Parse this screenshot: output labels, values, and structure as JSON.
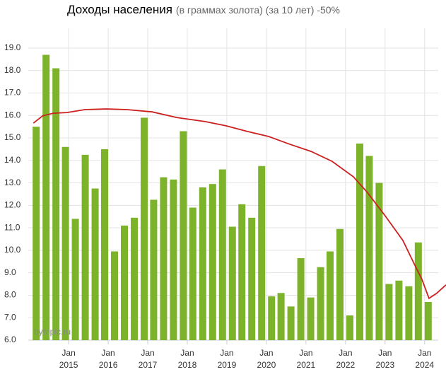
{
  "chart_data": {
    "type": "bar",
    "title": "Доходы населения",
    "subtitle": "(в граммах золота) (за 10 лет) -50%",
    "watermark": "bytopic.ru",
    "xlim": [
      2013.98,
      2024.54
    ],
    "ylim": [
      6,
      19.88
    ],
    "yticks": [
      {
        "value": 6,
        "label": "6.0"
      },
      {
        "value": 7,
        "label": "7.0"
      },
      {
        "value": 8,
        "label": "8.0"
      },
      {
        "value": 9,
        "label": "9.0"
      },
      {
        "value": 10,
        "label": "10.0"
      },
      {
        "value": 11,
        "label": "11.0"
      },
      {
        "value": 12,
        "label": "12.0"
      },
      {
        "value": 13,
        "label": "13.0"
      },
      {
        "value": 14,
        "label": "14.0"
      },
      {
        "value": 15,
        "label": "15.0"
      },
      {
        "value": 16,
        "label": "16.0"
      },
      {
        "value": 17,
        "label": "17.0"
      },
      {
        "value": 18,
        "label": "18.0"
      },
      {
        "value": 19,
        "label": "19.0"
      }
    ],
    "xticks": [
      {
        "value": 2015,
        "label": "Jan\n2015"
      },
      {
        "value": 2016,
        "label": "Jan\n2016"
      },
      {
        "value": 2017,
        "label": "Jan\n2017"
      },
      {
        "value": 2018,
        "label": "Jan\n2018"
      },
      {
        "value": 2019,
        "label": "Jan\n2019"
      },
      {
        "value": 2020,
        "label": "Jan\n2020"
      },
      {
        "value": 2021,
        "label": "Jan\n2021"
      },
      {
        "value": 2022,
        "label": "Jan\n2022"
      },
      {
        "value": 2023,
        "label": "Jan\n2023"
      },
      {
        "value": 2024,
        "label": "Jan\n2024"
      }
    ],
    "grid": true,
    "series": [
      {
        "type": "bar",
        "color": "#7cb32a",
        "x": [
          2014.18,
          2014.43,
          2014.68,
          2014.92,
          2015.17,
          2015.42,
          2015.67,
          2015.91,
          2016.16,
          2016.41,
          2016.66,
          2016.91,
          2017.15,
          2017.4,
          2017.65,
          2017.9,
          2018.14,
          2018.39,
          2018.64,
          2018.89,
          2019.14,
          2019.38,
          2019.63,
          2019.88,
          2020.13,
          2020.37,
          2020.62,
          2020.87,
          2021.12,
          2021.37,
          2021.61,
          2021.86,
          2022.11,
          2022.36,
          2022.6,
          2022.85,
          2023.1,
          2023.35,
          2023.6,
          2023.84,
          2024.09
        ],
        "values": [
          15.5,
          18.7,
          18.1,
          14.6,
          11.4,
          14.25,
          12.75,
          14.5,
          9.95,
          11.1,
          11.45,
          15.9,
          12.25,
          13.25,
          13.15,
          15.3,
          11.9,
          12.8,
          12.95,
          13.6,
          11.05,
          12.05,
          11.45,
          13.75,
          7.95,
          8.1,
          7.5,
          9.65,
          7.9,
          9.25,
          9.95,
          10.95,
          7.1,
          14.75,
          14.2,
          13.0,
          8.5,
          8.65,
          8.4,
          10.35,
          7.7
        ]
      },
      {
        "type": "line",
        "color": "#cc1f1f",
        "x": [
          2014.11,
          2014.34,
          2014.61,
          2014.96,
          2015.41,
          2015.95,
          2016.48,
          2017.11,
          2017.73,
          2018.45,
          2018.98,
          2019.52,
          2020.05,
          2020.59,
          2021.13,
          2021.66,
          2022.2,
          2022.55,
          2023.0,
          2023.45,
          2023.71,
          2023.93,
          2024.11,
          2024.3,
          2024.54
        ],
        "values": [
          15.66,
          15.98,
          16.1,
          16.13,
          16.26,
          16.29,
          16.26,
          16.16,
          15.91,
          15.73,
          15.54,
          15.29,
          15.07,
          14.72,
          14.4,
          13.96,
          13.27,
          12.58,
          11.54,
          10.44,
          9.49,
          8.71,
          7.86,
          8.08,
          8.46
        ]
      }
    ]
  }
}
